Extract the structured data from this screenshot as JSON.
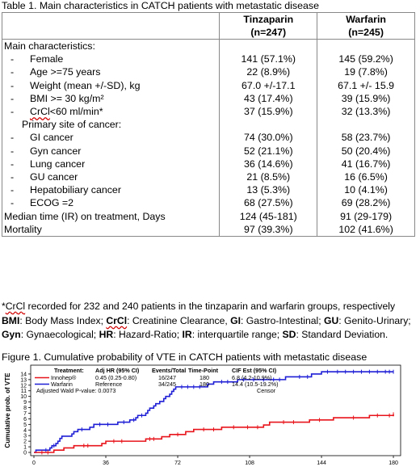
{
  "table": {
    "caption": "Table 1. Main characteristics in CATCH patients with metastatic disease",
    "col1_header": "Tinzaparin",
    "col1_n": "(n=247)",
    "col2_header": "Warfarin",
    "col2_n": "(n=245)",
    "rows": [
      {
        "label": "Main characteristics:",
        "bullet": "",
        "indent": 0,
        "a": "",
        "b": ""
      },
      {
        "label": "Female",
        "bullet": "-",
        "indent": 1,
        "a": "141 (57.1%)",
        "b": "145 (59.2%)"
      },
      {
        "label": "Age >=75 years",
        "bullet": "-",
        "indent": 1,
        "a": "22 (8.9%)",
        "b": "19 (7.8%)"
      },
      {
        "label": "Weight (mean +/-SD), kg",
        "bullet": "-",
        "indent": 1,
        "a": "67.0 +/-17.1",
        "b": "67.1 +/- 15.9"
      },
      {
        "label": "BMI >= 30 kg/m²",
        "bullet": "-",
        "indent": 1,
        "a": "43 (17.4%)",
        "b": "39 (15.9%)"
      },
      {
        "label": "CrCl<60 ml/min*",
        "bullet": "-",
        "indent": 1,
        "a": "37 (15.9%)",
        "b": "32 (13.3%)"
      },
      {
        "label": "Primary site of cancer:",
        "bullet": "",
        "indent": 2,
        "a": "",
        "b": ""
      },
      {
        "label": "GI cancer",
        "bullet": "-",
        "indent": 1,
        "a": "74 (30.0%)",
        "b": "58 (23.7%)"
      },
      {
        "label": "Gyn cancer",
        "bullet": "-",
        "indent": 1,
        "a": "52 (21.1%)",
        "b": "50 (20.4%)"
      },
      {
        "label": "Lung cancer",
        "bullet": "-",
        "indent": 1,
        "a": "36 (14.6%)",
        "b": "41 (16.7%)"
      },
      {
        "label": "GU cancer",
        "bullet": "-",
        "indent": 1,
        "a": "21 (8.5%)",
        "b": "16 (6.5%)"
      },
      {
        "label": "Hepatobiliary cancer",
        "bullet": "-",
        "indent": 1,
        "a": "13 (5.3%)",
        "b": "10 (4.1%)"
      },
      {
        "label": "ECOG =2",
        "bullet": "-",
        "indent": 1,
        "a": "68 (27.5%)",
        "b": "69 (28.2%)"
      },
      {
        "label": "Median time (IR) on treatment, Days",
        "bullet": "",
        "indent": 0,
        "a": "124 (45-181)",
        "b": "91 (29-179)"
      },
      {
        "label": "Mortality",
        "bullet": "",
        "indent": 0,
        "a": "97 (39.3%)",
        "b": "102 (41.6%)"
      }
    ]
  },
  "footnotes": {
    "line1": "*CrCl recorded for 232 and 240 patients in the tinzaparin and warfarin groups, respectively",
    "line2_parts": [
      "BMI",
      ": Body Mass Index; ",
      "CrCl",
      ": Creatinine Clearance, ",
      "GI",
      ": Gastro-Intestinal; ",
      "GU",
      ": Genito-Urinary;"
    ],
    "line3_parts": [
      "Gyn",
      ": Gynaecological; ",
      "HR",
      ": Hazard-Ratio; ",
      "IR",
      ": interquartile range; ",
      "SD",
      ": Standard Deviation."
    ]
  },
  "figure": {
    "caption": "Figure 1. Cumulative probability of VTE in CATCH patients with metastatic disease",
    "legend": {
      "headers": [
        "Treatment:",
        "Adj HR (95% CI)",
        "Events/Total",
        "Time-Point",
        "CIF Est (95% CI)"
      ],
      "rows": [
        {
          "name": "Innohep®",
          "hr": "0.45 (0.25-0.80)",
          "events": "16/247",
          "tp": "180",
          "cif": "6.8 (4.2-10.9%)",
          "color": "#e8141b"
        },
        {
          "name": "Warfarin",
          "hr": "Reference",
          "events": "34/245",
          "tp": "180",
          "cif": "14.4 (10.5-19.2%)",
          "color": "#1f1fd6"
        }
      ],
      "pvalue": "Adjusted Wald P-value: 0.0073",
      "censor_label": "Censor"
    }
  },
  "chart_data": {
    "type": "line",
    "ylabel": "Cumulative prob. of VTE",
    "xlabel": "",
    "xlim": [
      0,
      182
    ],
    "ylim": [
      0,
      15
    ],
    "xticks": [
      0,
      36,
      72,
      108,
      144,
      180
    ],
    "yticks": [
      0,
      1,
      2,
      3,
      4,
      5,
      6,
      7,
      8,
      9,
      10,
      11,
      12,
      13,
      14
    ],
    "series": [
      {
        "name": "Warfarin",
        "color": "#1f1fd6",
        "steps": [
          [
            0,
            0
          ],
          [
            1,
            0.4
          ],
          [
            8,
            0.8
          ],
          [
            9,
            1.2
          ],
          [
            11,
            1.6
          ],
          [
            12,
            2.0
          ],
          [
            13,
            2.5
          ],
          [
            14,
            2.9
          ],
          [
            19,
            3.3
          ],
          [
            20,
            3.7
          ],
          [
            22,
            4.1
          ],
          [
            28,
            4.5
          ],
          [
            30,
            5.0
          ],
          [
            42,
            5.4
          ],
          [
            48,
            5.8
          ],
          [
            51,
            6.2
          ],
          [
            52,
            6.6
          ],
          [
            56,
            7.0
          ],
          [
            57,
            7.5
          ],
          [
            58,
            7.9
          ],
          [
            60,
            8.3
          ],
          [
            61,
            8.7
          ],
          [
            63,
            9.1
          ],
          [
            65,
            9.6
          ],
          [
            66,
            10.0
          ],
          [
            68,
            10.4
          ],
          [
            69,
            10.9
          ],
          [
            70,
            11.3
          ],
          [
            71,
            11.7
          ],
          [
            87,
            12.2
          ],
          [
            90,
            12.6
          ],
          [
            102,
            13.0
          ],
          [
            126,
            13.5
          ],
          [
            139,
            14.0
          ],
          [
            144,
            14.4
          ],
          [
            180,
            14.4
          ]
        ],
        "censors": [
          6,
          10,
          24,
          33,
          37,
          45,
          50,
          54,
          74,
          77,
          80,
          83,
          94,
          97,
          105,
          110,
          115,
          120,
          123,
          133,
          137,
          147,
          152,
          156,
          160,
          164,
          168,
          172,
          176,
          178,
          180
        ]
      },
      {
        "name": "Innohep®",
        "color": "#e8141b",
        "steps": [
          [
            0,
            0
          ],
          [
            10,
            0.4
          ],
          [
            15,
            0.8
          ],
          [
            20,
            1.2
          ],
          [
            34,
            1.6
          ],
          [
            36,
            2.0
          ],
          [
            56,
            2.4
          ],
          [
            64,
            2.8
          ],
          [
            68,
            3.2
          ],
          [
            76,
            3.7
          ],
          [
            80,
            4.1
          ],
          [
            94,
            4.5
          ],
          [
            115,
            4.9
          ],
          [
            118,
            5.4
          ],
          [
            138,
            5.8
          ],
          [
            150,
            6.2
          ],
          [
            168,
            6.6
          ],
          [
            180,
            6.8
          ]
        ],
        "censors": [
          4,
          7,
          25,
          27,
          40,
          44,
          58,
          60,
          72,
          85,
          90,
          100,
          107,
          112,
          125,
          130,
          143,
          160,
          172,
          178,
          180
        ]
      }
    ]
  }
}
